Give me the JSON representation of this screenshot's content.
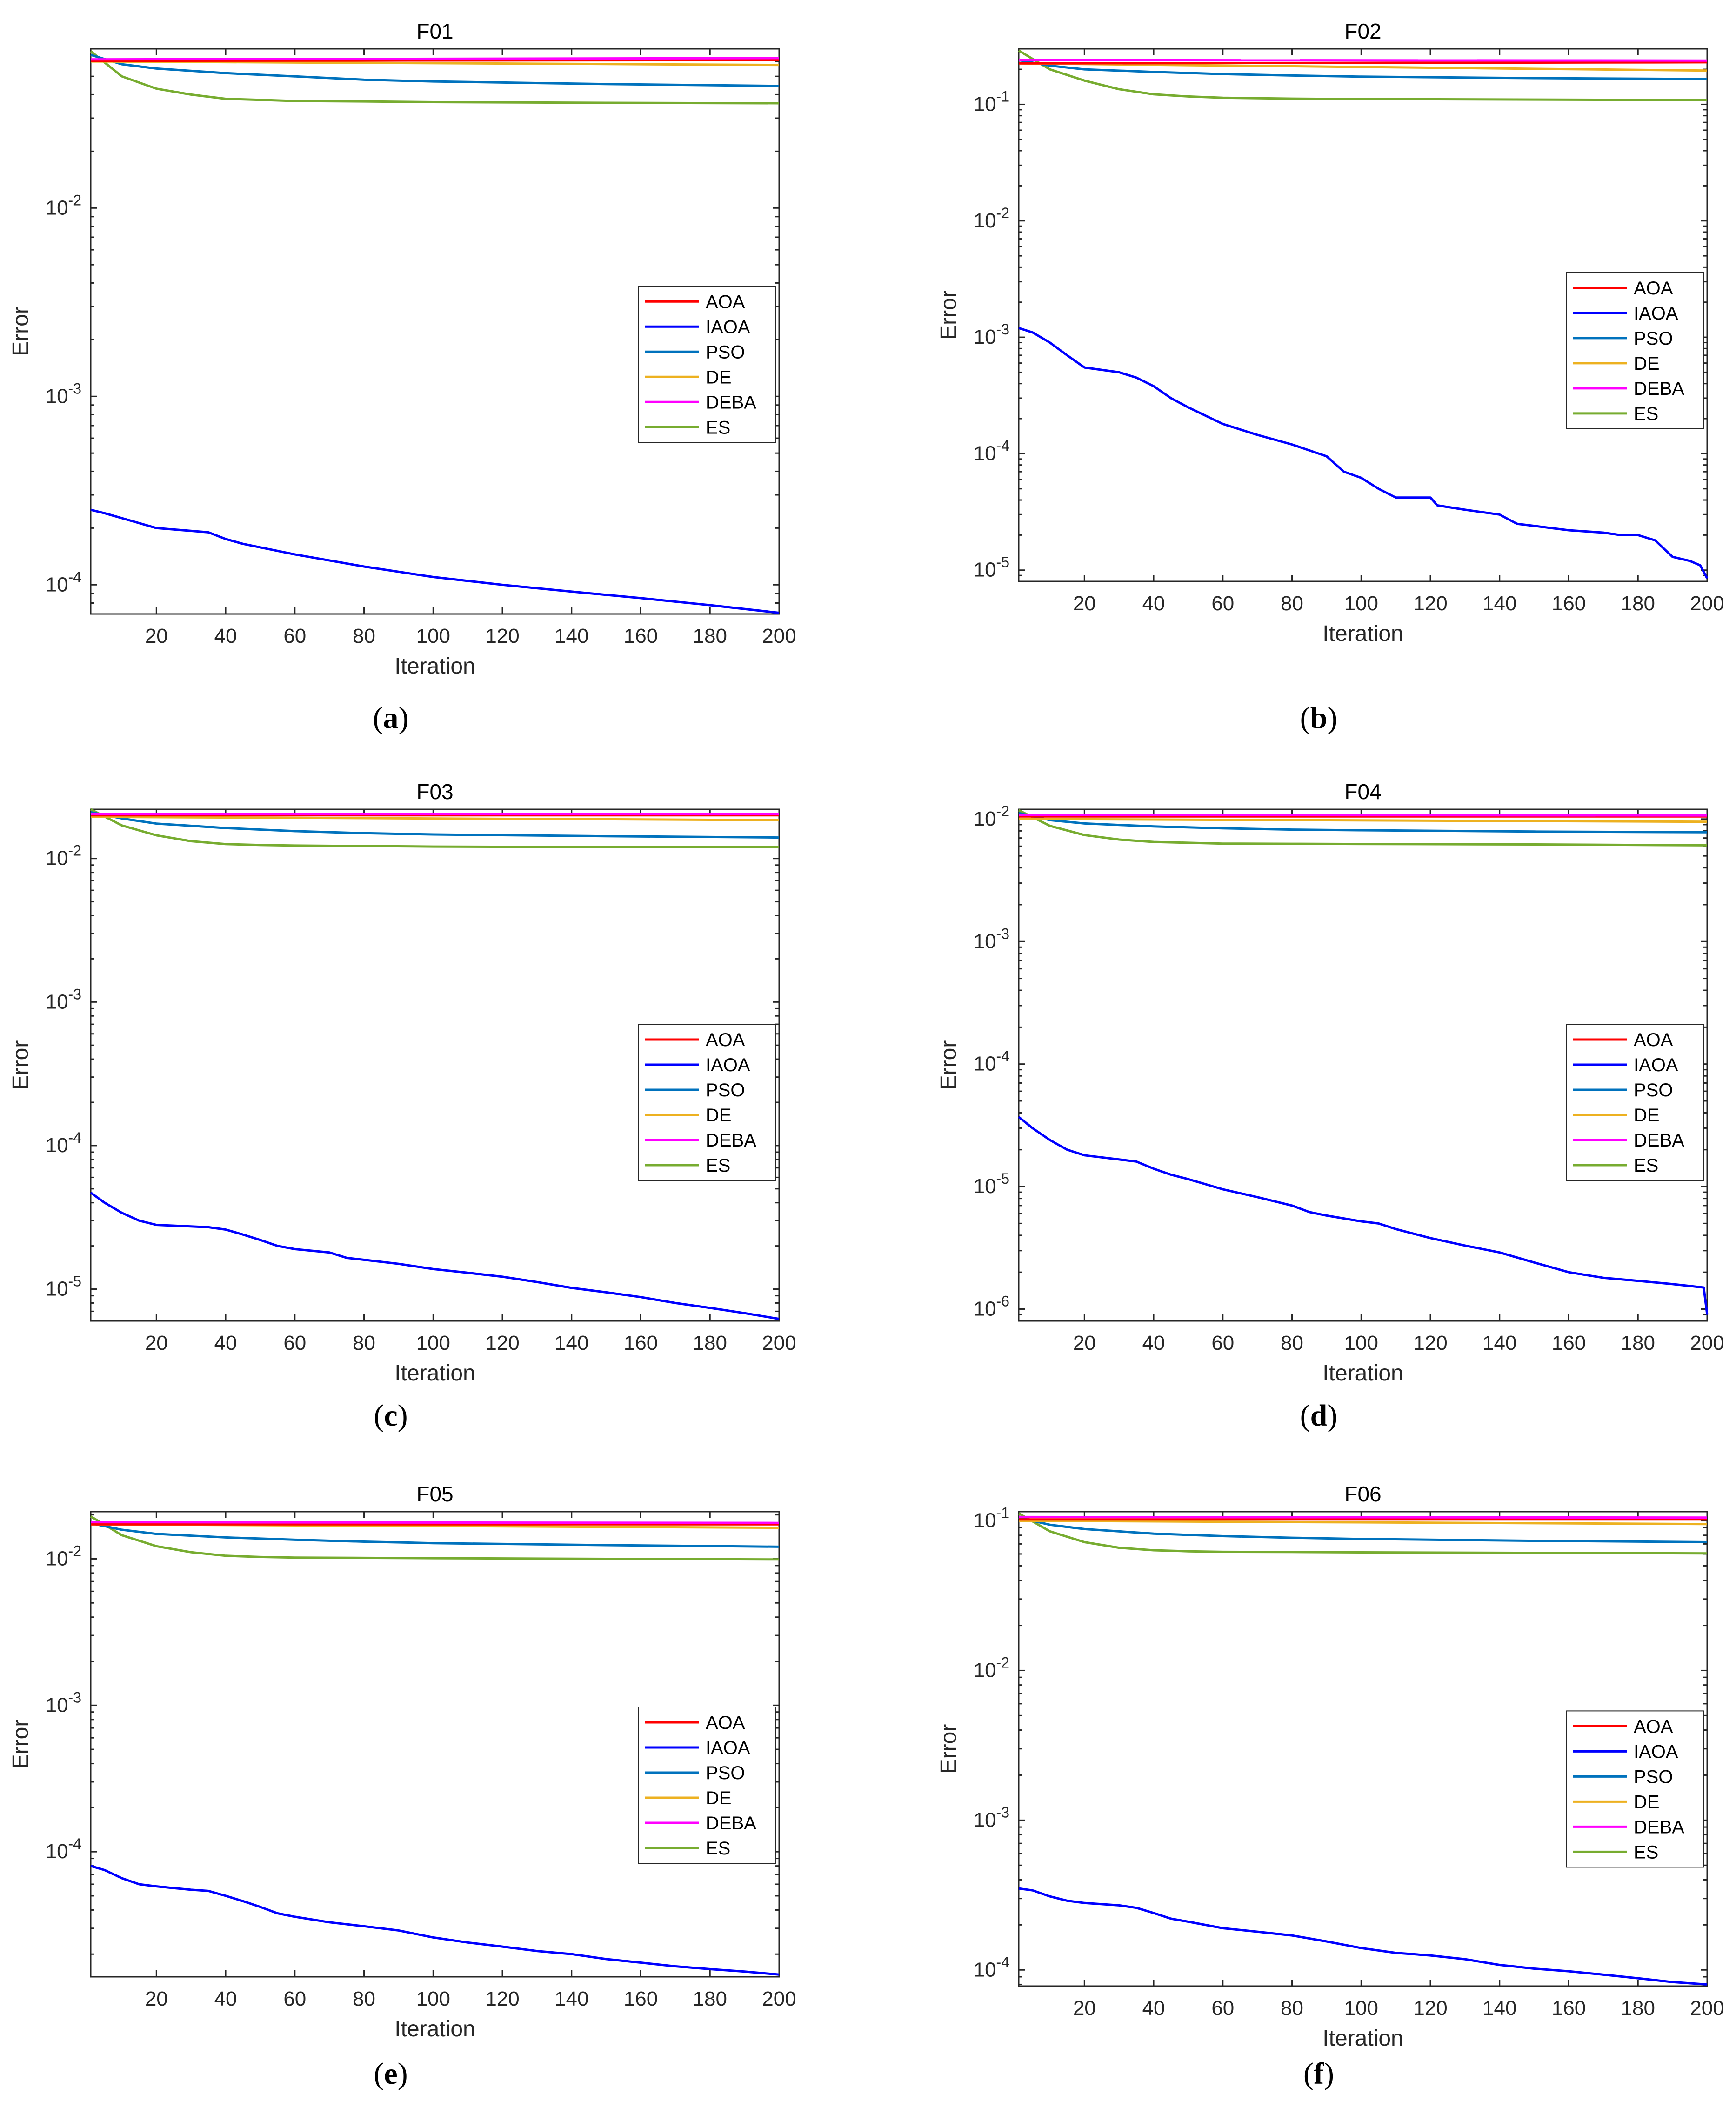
{
  "legend_labels": [
    "AOA",
    "IAOA",
    "PSO",
    "DE",
    "DEBA",
    "ES"
  ],
  "series_colors": {
    "AOA": "#ff0000",
    "IAOA": "#0000ff",
    "PSO": "#0072bd",
    "DE": "#edb120",
    "DEBA": "#ff00ff",
    "ES": "#77ac30"
  },
  "chart_data": [
    {
      "type": "line",
      "title": "F01",
      "caption_letter": "a",
      "caption": "(a)",
      "xlabel": "Iteration",
      "ylabel": "Error",
      "yscale": "log",
      "xlim": [
        1,
        200
      ],
      "ylim": [
        7e-05,
        0.07
      ],
      "xticks": [
        20,
        40,
        60,
        80,
        100,
        120,
        140,
        160,
        180,
        200
      ],
      "yticks": [
        0.0001,
        0.001,
        0.01
      ],
      "ytick_labels": [
        "10^-4",
        "10^-3",
        "10^-2"
      ],
      "legend_location": "center-right",
      "series": [
        {
          "name": "AOA",
          "x": [
            1,
            200
          ],
          "values": [
            0.0605,
            0.061
          ]
        },
        {
          "name": "IAOA",
          "x": [
            1,
            5,
            20,
            35,
            40,
            45,
            60,
            80,
            100,
            120,
            140,
            160,
            180,
            200
          ],
          "values": [
            0.00025,
            0.00024,
            0.0002,
            0.00019,
            0.000175,
            0.000165,
            0.000145,
            0.000125,
            0.00011,
            0.0001,
            9.2e-05,
            8.5e-05,
            7.8e-05,
            7.1e-05
          ]
        },
        {
          "name": "PSO",
          "x": [
            1,
            10,
            20,
            40,
            60,
            80,
            100,
            150,
            200
          ],
          "values": [
            0.065,
            0.058,
            0.055,
            0.052,
            0.05,
            0.048,
            0.047,
            0.0455,
            0.0445
          ]
        },
        {
          "name": "DE",
          "x": [
            1,
            200
          ],
          "values": [
            0.06,
            0.0575
          ]
        },
        {
          "name": "DEBA",
          "x": [
            1,
            200
          ],
          "values": [
            0.0615,
            0.0625
          ]
        },
        {
          "name": "ES",
          "x": [
            1,
            10,
            20,
            30,
            40,
            50,
            60,
            80,
            100,
            150,
            200
          ],
          "values": [
            0.068,
            0.05,
            0.043,
            0.04,
            0.038,
            0.0375,
            0.037,
            0.0368,
            0.0365,
            0.0362,
            0.036
          ]
        }
      ]
    },
    {
      "type": "line",
      "title": "F02",
      "caption_letter": "b",
      "caption": "(b)",
      "xlabel": "Iteration",
      "ylabel": "Error",
      "yscale": "log",
      "xlim": [
        1,
        200
      ],
      "ylim": [
        8e-06,
        0.3
      ],
      "xticks": [
        20,
        40,
        60,
        80,
        100,
        120,
        140,
        160,
        180,
        200
      ],
      "yticks": [
        1e-05,
        0.0001,
        0.001,
        0.01,
        0.1
      ],
      "ytick_labels": [
        "10^-5",
        "10^-4",
        "10^-3",
        "10^-2",
        "10^-1"
      ],
      "legend_location": "center-right",
      "series": [
        {
          "name": "AOA",
          "x": [
            1,
            200
          ],
          "values": [
            0.225,
            0.23
          ]
        },
        {
          "name": "IAOA",
          "x": [
            1,
            5,
            10,
            15,
            20,
            30,
            35,
            40,
            45,
            50,
            60,
            70,
            80,
            90,
            95,
            100,
            105,
            110,
            120,
            122,
            130,
            140,
            145,
            150,
            160,
            170,
            175,
            180,
            185,
            190,
            195,
            198,
            200
          ],
          "values": [
            0.0012,
            0.0011,
            0.0009,
            0.0007,
            0.00055,
            0.0005,
            0.00045,
            0.00038,
            0.0003,
            0.00025,
            0.00018,
            0.000145,
            0.00012,
            9.5e-05,
            7e-05,
            6.2e-05,
            5e-05,
            4.2e-05,
            4.2e-05,
            3.6e-05,
            3.3e-05,
            3e-05,
            2.5e-05,
            2.4e-05,
            2.2e-05,
            2.1e-05,
            2e-05,
            2e-05,
            1.8e-05,
            1.3e-05,
            1.2e-05,
            1.1e-05,
            8.5e-06
          ]
        },
        {
          "name": "PSO",
          "x": [
            1,
            10,
            20,
            40,
            60,
            80,
            100,
            150,
            200
          ],
          "values": [
            0.24,
            0.215,
            0.2,
            0.19,
            0.182,
            0.177,
            0.173,
            0.168,
            0.165
          ]
        },
        {
          "name": "DE",
          "x": [
            1,
            200
          ],
          "values": [
            0.225,
            0.195
          ]
        },
        {
          "name": "DEBA",
          "x": [
            1,
            200
          ],
          "values": [
            0.24,
            0.238
          ]
        },
        {
          "name": "ES",
          "x": [
            1,
            10,
            20,
            30,
            40,
            50,
            60,
            80,
            100,
            150,
            200
          ],
          "values": [
            0.29,
            0.2,
            0.16,
            0.135,
            0.122,
            0.117,
            0.114,
            0.112,
            0.111,
            0.11,
            0.109
          ]
        }
      ]
    },
    {
      "type": "line",
      "title": "F03",
      "caption_letter": "c",
      "caption": "(c)",
      "xlabel": "Iteration",
      "ylabel": "Error",
      "yscale": "log",
      "xlim": [
        1,
        200
      ],
      "ylim": [
        6e-06,
        0.022
      ],
      "xticks": [
        20,
        40,
        60,
        80,
        100,
        120,
        140,
        160,
        180,
        200
      ],
      "yticks": [
        1e-05,
        0.0001,
        0.001,
        0.01
      ],
      "ytick_labels": [
        "10^-5",
        "10^-4",
        "10^-3",
        "10^-2"
      ],
      "legend_location": "center-right",
      "series": [
        {
          "name": "AOA",
          "x": [
            1,
            200
          ],
          "values": [
            0.02,
            0.02
          ]
        },
        {
          "name": "IAOA",
          "x": [
            1,
            5,
            10,
            15,
            20,
            35,
            40,
            45,
            50,
            55,
            60,
            70,
            75,
            80,
            90,
            100,
            110,
            120,
            130,
            140,
            150,
            160,
            170,
            180,
            190,
            200
          ],
          "values": [
            4.7e-05,
            4e-05,
            3.4e-05,
            3e-05,
            2.8e-05,
            2.7e-05,
            2.6e-05,
            2.4e-05,
            2.2e-05,
            2e-05,
            1.9e-05,
            1.8e-05,
            1.65e-05,
            1.6e-05,
            1.5e-05,
            1.38e-05,
            1.3e-05,
            1.22e-05,
            1.12e-05,
            1.02e-05,
            9.5e-06,
            8.8e-06,
            8e-06,
            7.4e-06,
            6.8e-06,
            6.2e-06
          ]
        },
        {
          "name": "PSO",
          "x": [
            1,
            10,
            20,
            40,
            60,
            80,
            100,
            150,
            200
          ],
          "values": [
            0.021,
            0.019,
            0.0175,
            0.0163,
            0.0155,
            0.015,
            0.0147,
            0.0143,
            0.014
          ]
        },
        {
          "name": "DE",
          "x": [
            1,
            200
          ],
          "values": [
            0.0195,
            0.0185
          ]
        },
        {
          "name": "DEBA",
          "x": [
            1,
            200
          ],
          "values": [
            0.0205,
            0.0205
          ]
        },
        {
          "name": "ES",
          "x": [
            1,
            10,
            20,
            30,
            40,
            50,
            60,
            80,
            100,
            150,
            200
          ],
          "values": [
            0.022,
            0.017,
            0.0145,
            0.0132,
            0.0126,
            0.0124,
            0.0123,
            0.0122,
            0.0121,
            0.012,
            0.012
          ]
        }
      ]
    },
    {
      "type": "line",
      "title": "F04",
      "caption_letter": "d",
      "caption": "(d)",
      "xlabel": "Iteration",
      "ylabel": "Error",
      "yscale": "log",
      "xlim": [
        1,
        200
      ],
      "ylim": [
        8e-07,
        0.012
      ],
      "xticks": [
        20,
        40,
        60,
        80,
        100,
        120,
        140,
        160,
        180,
        200
      ],
      "yticks": [
        1e-06,
        1e-05,
        0.0001,
        0.001,
        0.01
      ],
      "ytick_labels": [
        "10^-6",
        "10^-5",
        "10^-4",
        "10^-3",
        "10^-2"
      ],
      "legend_location": "center-right",
      "series": [
        {
          "name": "AOA",
          "x": [
            1,
            200
          ],
          "values": [
            0.0105,
            0.0105
          ]
        },
        {
          "name": "IAOA",
          "x": [
            1,
            5,
            10,
            15,
            20,
            35,
            40,
            45,
            50,
            60,
            70,
            80,
            85,
            90,
            100,
            105,
            110,
            120,
            130,
            140,
            150,
            160,
            170,
            180,
            190,
            199,
            200
          ],
          "values": [
            3.7e-05,
            3e-05,
            2.4e-05,
            2e-05,
            1.8e-05,
            1.6e-05,
            1.4e-05,
            1.25e-05,
            1.15e-05,
            9.5e-06,
            8.2e-06,
            7e-06,
            6.2e-06,
            5.8e-06,
            5.2e-06,
            5e-06,
            4.5e-06,
            3.8e-06,
            3.3e-06,
            2.9e-06,
            2.4e-06,
            2e-06,
            1.8e-06,
            1.7e-06,
            1.6e-06,
            1.5e-06,
            9e-07
          ]
        },
        {
          "name": "PSO",
          "x": [
            1,
            10,
            20,
            40,
            60,
            80,
            100,
            150,
            200
          ],
          "values": [
            0.0112,
            0.0098,
            0.0092,
            0.0087,
            0.0084,
            0.0082,
            0.0081,
            0.0079,
            0.0078
          ]
        },
        {
          "name": "DE",
          "x": [
            1,
            200
          ],
          "values": [
            0.01,
            0.0095
          ]
        },
        {
          "name": "DEBA",
          "x": [
            1,
            200
          ],
          "values": [
            0.0108,
            0.0107
          ]
        },
        {
          "name": "ES",
          "x": [
            1,
            10,
            20,
            30,
            40,
            50,
            60,
            80,
            100,
            150,
            200
          ],
          "values": [
            0.0118,
            0.0088,
            0.0074,
            0.0068,
            0.0065,
            0.0064,
            0.0063,
            0.00628,
            0.00625,
            0.0062,
            0.0061
          ]
        }
      ]
    },
    {
      "type": "line",
      "title": "F05",
      "caption_letter": "e",
      "caption": "(e)",
      "xlabel": "Iteration",
      "ylabel": "Error",
      "yscale": "log",
      "xlim": [
        1,
        200
      ],
      "ylim": [
        1.4e-05,
        0.021
      ],
      "xticks": [
        20,
        40,
        60,
        80,
        100,
        120,
        140,
        160,
        180,
        200
      ],
      "yticks": [
        0.0001,
        0.001,
        0.01
      ],
      "ytick_labels": [
        "10^-4",
        "10^-3",
        "10^-2"
      ],
      "legend_location": "center-right",
      "series": [
        {
          "name": "AOA",
          "x": [
            1,
            200
          ],
          "values": [
            0.0172,
            0.0172
          ]
        },
        {
          "name": "IAOA",
          "x": [
            1,
            5,
            10,
            15,
            20,
            30,
            35,
            40,
            45,
            50,
            55,
            60,
            70,
            80,
            90,
            100,
            110,
            120,
            130,
            140,
            150,
            160,
            170,
            180,
            190,
            200
          ],
          "values": [
            8e-05,
            7.5e-05,
            6.6e-05,
            6e-05,
            5.8e-05,
            5.5e-05,
            5.4e-05,
            5e-05,
            4.6e-05,
            4.2e-05,
            3.8e-05,
            3.6e-05,
            3.3e-05,
            3.1e-05,
            2.9e-05,
            2.6e-05,
            2.4e-05,
            2.25e-05,
            2.1e-05,
            2e-05,
            1.85e-05,
            1.75e-05,
            1.65e-05,
            1.58e-05,
            1.52e-05,
            1.45e-05
          ]
        },
        {
          "name": "PSO",
          "x": [
            1,
            10,
            20,
            40,
            60,
            80,
            100,
            150,
            200
          ],
          "values": [
            0.0175,
            0.0158,
            0.0148,
            0.014,
            0.0135,
            0.0131,
            0.0128,
            0.0124,
            0.0121
          ]
        },
        {
          "name": "DE",
          "x": [
            1,
            200
          ],
          "values": [
            0.0172,
            0.0163
          ]
        },
        {
          "name": "DEBA",
          "x": [
            1,
            200
          ],
          "values": [
            0.0178,
            0.0176
          ]
        },
        {
          "name": "ES",
          "x": [
            1,
            10,
            20,
            30,
            40,
            50,
            60,
            80,
            100,
            150,
            200
          ],
          "values": [
            0.0195,
            0.0145,
            0.0122,
            0.0111,
            0.0105,
            0.0103,
            0.0102,
            0.01015,
            0.0101,
            0.01,
            0.0099
          ]
        }
      ]
    },
    {
      "type": "line",
      "title": "F06",
      "caption_letter": "f",
      "caption": "(f)",
      "xlabel": "Iteration",
      "ylabel": "Error",
      "yscale": "log",
      "xlim": [
        1,
        200
      ],
      "ylim": [
        7.8e-05,
        0.115
      ],
      "xticks": [
        20,
        40,
        60,
        80,
        100,
        120,
        140,
        160,
        180,
        200
      ],
      "yticks": [
        0.0001,
        0.001,
        0.01,
        0.1
      ],
      "ytick_labels": [
        "10^-4",
        "10^-3",
        "10^-2",
        "10^-1"
      ],
      "legend_location": "center-right",
      "series": [
        {
          "name": "AOA",
          "x": [
            1,
            200
          ],
          "values": [
            0.102,
            0.102
          ]
        },
        {
          "name": "IAOA",
          "x": [
            1,
            5,
            10,
            15,
            20,
            30,
            35,
            40,
            45,
            50,
            60,
            70,
            80,
            90,
            100,
            110,
            120,
            130,
            140,
            145,
            150,
            160,
            170,
            180,
            190,
            200
          ],
          "values": [
            0.00035,
            0.00034,
            0.00031,
            0.00029,
            0.00028,
            0.00027,
            0.00026,
            0.00024,
            0.00022,
            0.00021,
            0.00019,
            0.00018,
            0.00017,
            0.000155,
            0.00014,
            0.00013,
            0.000125,
            0.000118,
            0.000108,
            0.000105,
            0.000102,
            9.8e-05,
            9.3e-05,
            8.8e-05,
            8.3e-05,
            8e-05
          ]
        },
        {
          "name": "PSO",
          "x": [
            1,
            10,
            20,
            40,
            60,
            80,
            100,
            150,
            200
          ],
          "values": [
            0.105,
            0.094,
            0.088,
            0.082,
            0.079,
            0.077,
            0.0755,
            0.0735,
            0.072
          ]
        },
        {
          "name": "DE",
          "x": [
            1,
            200
          ],
          "values": [
            0.1,
            0.095
          ]
        },
        {
          "name": "DEBA",
          "x": [
            1,
            200
          ],
          "values": [
            0.106,
            0.105
          ]
        },
        {
          "name": "ES",
          "x": [
            1,
            10,
            20,
            30,
            40,
            50,
            60,
            80,
            100,
            150,
            200
          ],
          "values": [
            0.112,
            0.085,
            0.072,
            0.066,
            0.0635,
            0.0625,
            0.062,
            0.0618,
            0.0615,
            0.061,
            0.0605
          ]
        }
      ]
    }
  ]
}
